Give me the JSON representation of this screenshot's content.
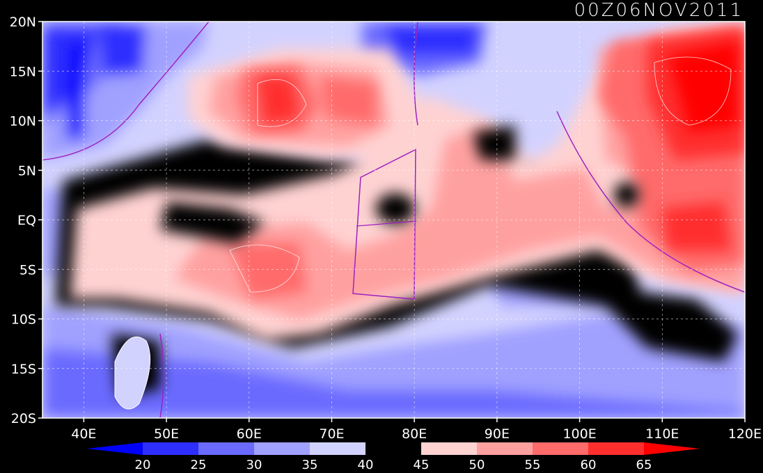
{
  "title": "00Z06NOV2011",
  "map": {
    "lon_range": [
      35,
      120
    ],
    "lat_range": [
      -20,
      20
    ],
    "lat_ticks": [
      {
        "value": 20,
        "label": "20N"
      },
      {
        "value": 15,
        "label": "15N"
      },
      {
        "value": 10,
        "label": "10N"
      },
      {
        "value": 5,
        "label": "5N"
      },
      {
        "value": 0,
        "label": "EQ"
      },
      {
        "value": -5,
        "label": "5S"
      },
      {
        "value": -10,
        "label": "10S"
      },
      {
        "value": -15,
        "label": "15S"
      },
      {
        "value": -20,
        "label": "20S"
      }
    ],
    "lon_ticks": [
      {
        "value": 40,
        "label": "40E"
      },
      {
        "value": 50,
        "label": "50E"
      },
      {
        "value": 60,
        "label": "60E"
      },
      {
        "value": 70,
        "label": "70E"
      },
      {
        "value": 80,
        "label": "80E"
      },
      {
        "value": 90,
        "label": "90E"
      },
      {
        "value": 100,
        "label": "100E"
      },
      {
        "value": 110,
        "label": "110E"
      },
      {
        "value": 120,
        "label": "120E"
      }
    ],
    "gridlines": "dashed",
    "coastline_color": "#a020c0"
  },
  "colorbar": {
    "levels": [
      "20",
      "25",
      "30",
      "35",
      "40",
      "45",
      "50",
      "55",
      "60",
      "65"
    ],
    "colors": [
      "#0000ff",
      "#2e2eff",
      "#6a6aff",
      "#a0a0ff",
      "#d2d2ff",
      "#000000",
      "#ffd2d2",
      "#ffa0a0",
      "#ff6a6a",
      "#ff2e2e",
      "#ff0000"
    ]
  }
}
